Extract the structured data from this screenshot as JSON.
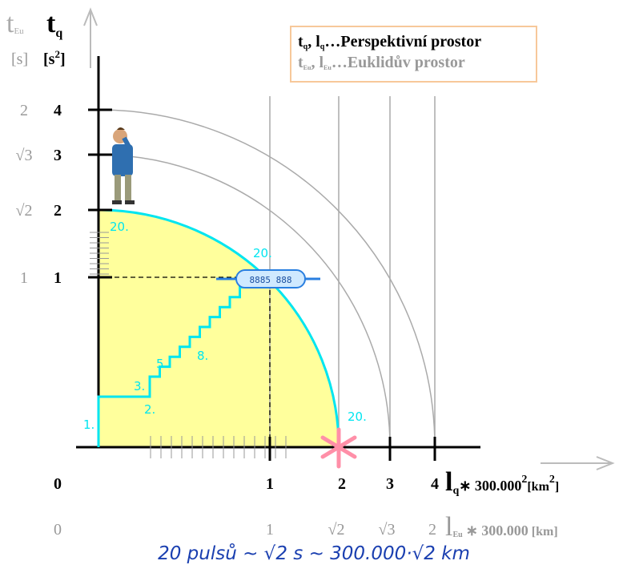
{
  "y_axis": {
    "eu_symbol": "t",
    "eu_sub": "Eu",
    "q_symbol": "t",
    "q_sub": "q",
    "eu_unit": "[s]",
    "q_unit": "[s",
    "q_unit_sup": "2",
    "q_unit_end": "]",
    "eu_ticks": [
      "2",
      "√3",
      "√2",
      "1"
    ],
    "q_ticks": [
      "4",
      "3",
      "2",
      "1"
    ]
  },
  "x_axis": {
    "q_ticks": [
      "0",
      "1",
      "2",
      "3",
      "4"
    ],
    "eu_ticks": [
      "0",
      "1",
      "√2",
      "√3",
      "2"
    ],
    "q_symbol": "l",
    "q_sub": "q",
    "q_factor": "∗ 300.000",
    "q_factor_sup": "2",
    "q_unit": "[km",
    "q_unit_sup": "2",
    "q_unit_end": "]",
    "eu_symbol": "l",
    "eu_sub": "Eu",
    "eu_factor": "∗ 300.000",
    "eu_unit": "[km]"
  },
  "legend": {
    "q_t": "t",
    "q_t_sub": "q",
    "q_sep": ", ",
    "q_l": "l",
    "q_l_sub": "q",
    "q_text": "…Perspektivní prostor",
    "eu_t": "t",
    "eu_t_sub": "Eu",
    "eu_sep": ", ",
    "eu_l": "l",
    "eu_l_sub": "Eu",
    "eu_text": "…Euklidův prostor"
  },
  "step_labels": [
    "1.",
    "2.",
    "3.",
    "5.",
    "8.",
    "20.",
    "20.",
    "20."
  ],
  "ship_label": "8885 888",
  "caption": "20 pulsů ~ √2 s ~ 300.000·√2 km"
}
